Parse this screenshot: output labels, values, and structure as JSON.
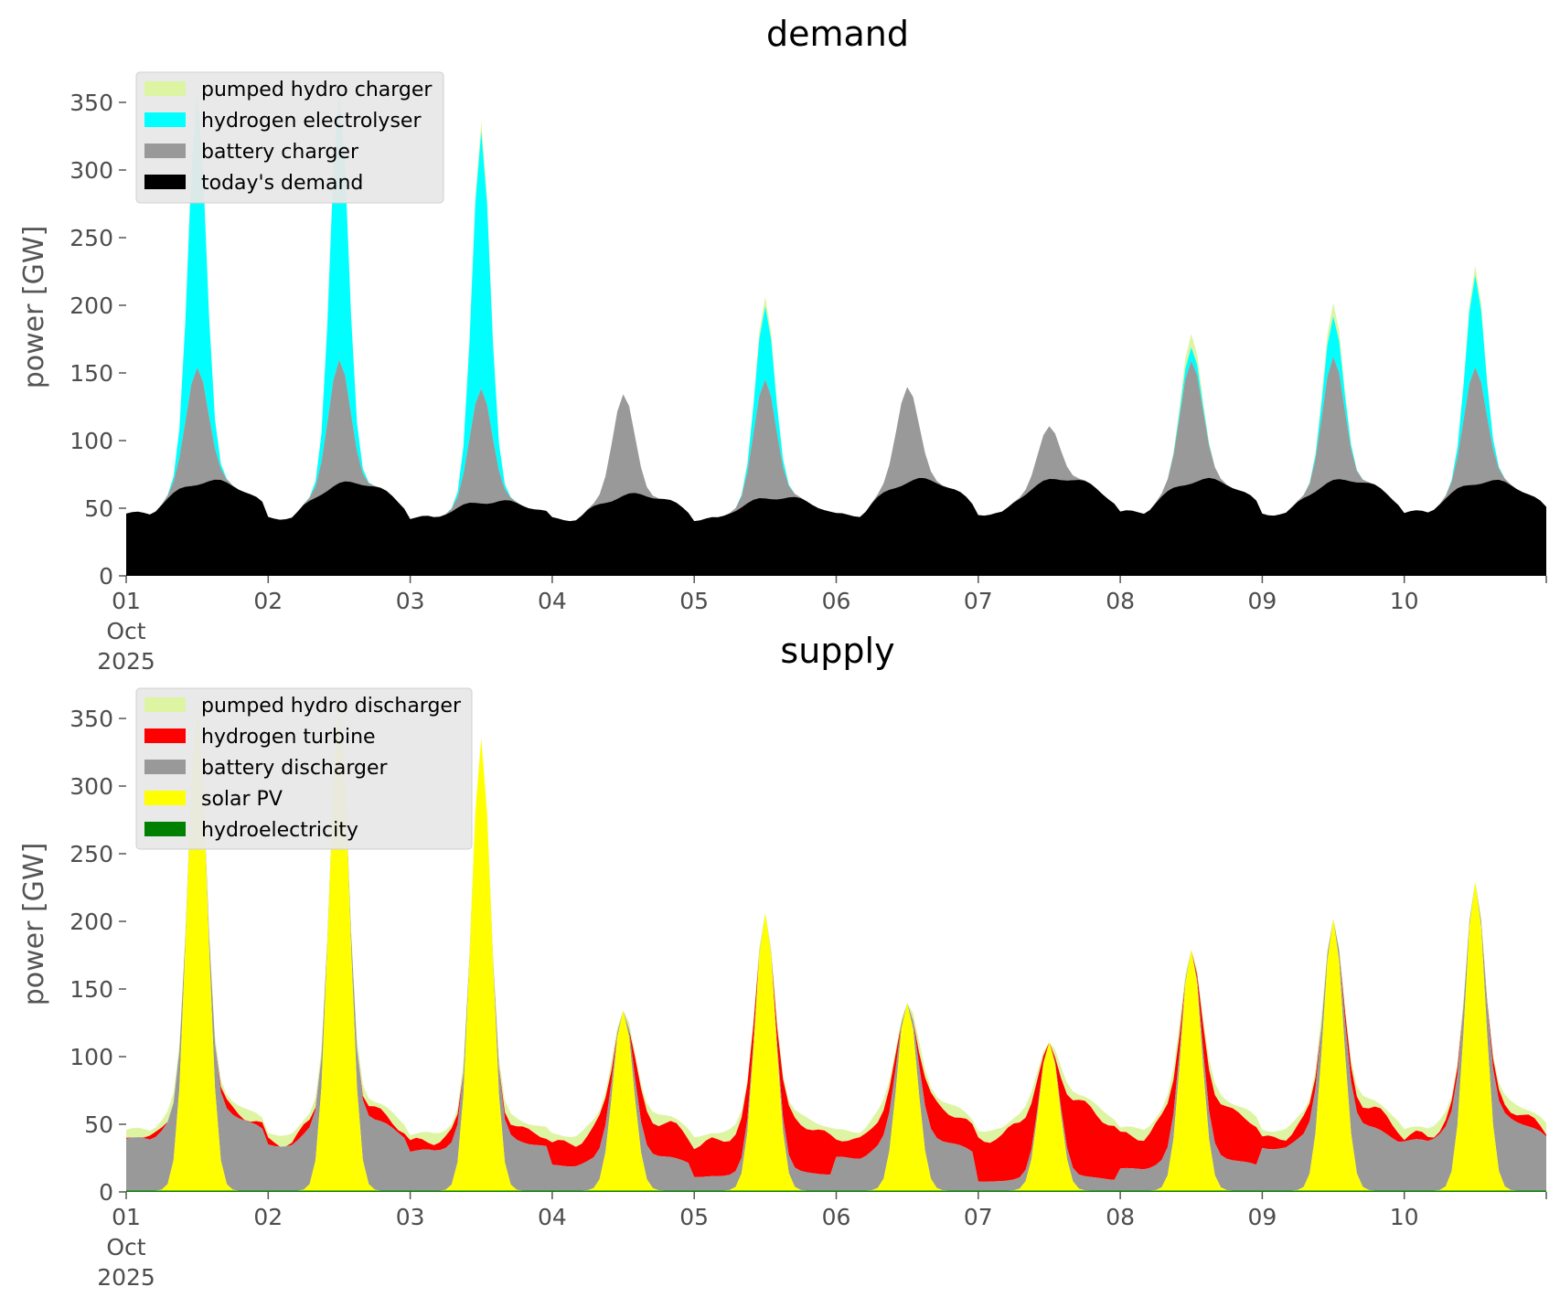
{
  "chart_data": [
    {
      "type": "area",
      "title": "demand",
      "ylabel": "power [GW]",
      "ylim": [
        0,
        375
      ],
      "yticks": [
        "0",
        "50",
        "100",
        "150",
        "200",
        "250",
        "300",
        "350"
      ],
      "xlabels": [
        "01\nOct\n2025",
        "02",
        "03",
        "04",
        "05",
        "06",
        "07",
        "08",
        "09",
        "10"
      ],
      "xrange": [
        "2025-10-01",
        "2025-10-11"
      ],
      "grid": false,
      "legend_position": "top-left",
      "legend": [
        "pumped hydro charger",
        "hydrogen electrolyser",
        "battery charger",
        "today's demand"
      ],
      "series": [
        {
          "name": "today's demand",
          "color": "#000000",
          "daily_min": [
            46,
            43,
            43,
            42,
            42,
            45,
            46,
            47,
            46,
            47
          ],
          "daily_max": [
            70,
            69,
            55,
            60,
            58,
            71,
            72,
            71,
            71,
            70
          ]
        },
        {
          "name": "battery charger",
          "color": "#999999",
          "peak_total": [
            157,
            160,
            140,
            135,
            146,
            142,
            111,
            162,
            162,
            157
          ]
        },
        {
          "name": "hydrogen electrolyser",
          "color": "#00ffff",
          "peak_total": [
            358,
            358,
            330,
            135,
            200,
            142,
            111,
            172,
            192,
            225
          ]
        },
        {
          "name": "pumped hydro charger",
          "color": "#ddf5a3",
          "peak_total": [
            362,
            362,
            337,
            135,
            207,
            142,
            111,
            182,
            202,
            232
          ]
        }
      ]
    },
    {
      "type": "area",
      "title": "supply",
      "ylabel": "power [GW]",
      "ylim": [
        0,
        375
      ],
      "yticks": [
        "0",
        "50",
        "100",
        "150",
        "200",
        "250",
        "300",
        "350"
      ],
      "xlabels": [
        "01\nOct\n2025",
        "02",
        "03",
        "04",
        "05",
        "06",
        "07",
        "08",
        "09",
        "10"
      ],
      "xrange": [
        "2025-10-01",
        "2025-10-11"
      ],
      "grid": false,
      "legend_position": "top-left",
      "legend": [
        "pumped hydro discharger",
        "hydrogen turbine",
        "battery discharger",
        "solar PV",
        "hydroelectricity"
      ],
      "series": [
        {
          "name": "hydroelectricity",
          "color": "#008000",
          "approx_level": 1
        },
        {
          "name": "solar PV",
          "color": "#ffff00",
          "daily_peak": [
            362,
            362,
            337,
            135,
            207,
            142,
            111,
            182,
            202,
            232
          ]
        },
        {
          "name": "battery discharger",
          "color": "#999999"
        },
        {
          "name": "hydrogen turbine",
          "color": "#ff0000"
        },
        {
          "name": "pumped hydro discharger",
          "color": "#ddf5a3"
        }
      ]
    }
  ]
}
